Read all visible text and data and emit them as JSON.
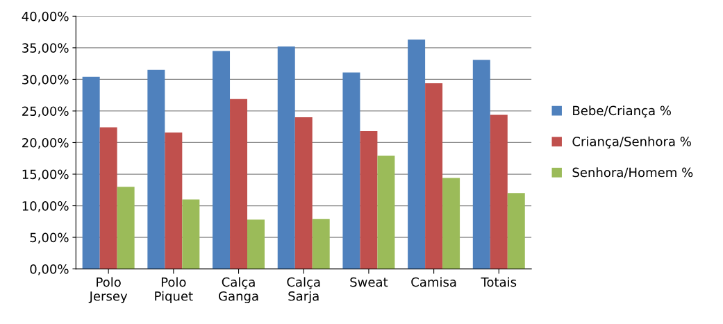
{
  "chart_data": {
    "type": "bar",
    "categories": [
      "Polo\nJersey",
      "Polo\nPiquet",
      "Calça\nGanga",
      "Calça\nSarja",
      "Sweat",
      "Camisa",
      "Totais"
    ],
    "series": [
      {
        "name": "Bebe/Criança %",
        "color": "#4f81bd",
        "values": [
          30.4,
          31.5,
          34.5,
          35.2,
          31.1,
          36.3,
          33.1
        ]
      },
      {
        "name": "Criança/Senhora %",
        "color": "#c0504d",
        "values": [
          22.4,
          21.6,
          26.9,
          24.0,
          21.8,
          29.4,
          24.4
        ]
      },
      {
        "name": "Senhora/Homem %",
        "color": "#9bbb59",
        "values": [
          13.0,
          11.0,
          7.8,
          7.9,
          17.9,
          14.4,
          12.0
        ]
      }
    ],
    "ylim": [
      0,
      40
    ],
    "yticks": [
      {
        "value": 0,
        "label": "0,00%"
      },
      {
        "value": 5,
        "label": "5,00%"
      },
      {
        "value": 10,
        "label": "10,00%"
      },
      {
        "value": 15,
        "label": "15,00%"
      },
      {
        "value": 20,
        "label": "20,00%"
      },
      {
        "value": 25,
        "label": "25,00%"
      },
      {
        "value": 30,
        "label": "30,00%"
      },
      {
        "value": 35,
        "label": "35,00%"
      },
      {
        "value": 40,
        "label": "40,00%"
      }
    ],
    "grid": "y",
    "legend": "right"
  }
}
